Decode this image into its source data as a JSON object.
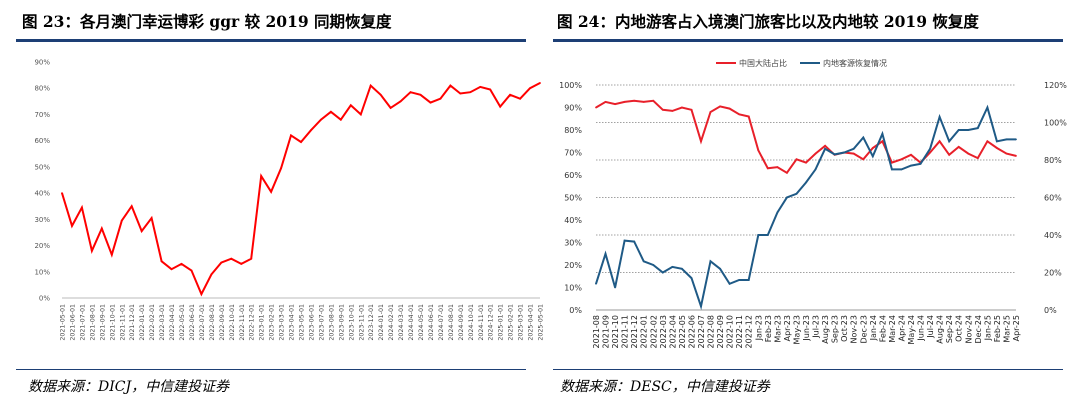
{
  "panel1": {
    "title": "图 23：各月澳门幸运博彩 ggr 较 2019 同期恢复度",
    "source": "数据来源：DICJ，中信建投证券"
  },
  "panel2": {
    "title": "图 24：内地游客占入境澳门旅客比以及内地较 2019 恢复度",
    "source": "数据来源：DESC，中信建投证券"
  },
  "chart_data": [
    {
      "type": "line",
      "title": "各月澳门幸运博彩 ggr 较 2019 同期恢复度",
      "ylim": [
        0,
        90
      ],
      "yticks": [
        "0%",
        "10%",
        "20%",
        "30%",
        "40%",
        "50%",
        "60%",
        "70%",
        "80%",
        "90%"
      ],
      "grid": false,
      "color": "#ff0000",
      "x": [
        "2021-05-01",
        "2021-06-01",
        "2021-07-01",
        "2021-08-01",
        "2021-09-01",
        "2021-10-01",
        "2021-11-01",
        "2021-12-01",
        "2022-01-01",
        "2022-02-01",
        "2022-03-01",
        "2022-04-01",
        "2022-05-01",
        "2022-06-01",
        "2022-07-01",
        "2022-08-01",
        "2022-09-01",
        "2022-10-01",
        "2022-11-01",
        "2022-12-01",
        "2023-01-01",
        "2023-02-01",
        "2023-03-01",
        "2023-04-01",
        "2023-05-01",
        "2023-06-01",
        "2023-07-01",
        "2023-08-01",
        "2023-09-01",
        "2023-10-01",
        "2023-11-01",
        "2023-12-01",
        "2024-01-01",
        "2024-02-01",
        "2024-03-01",
        "2024-04-01",
        "2024-05-01",
        "2024-06-01",
        "2024-07-01",
        "2024-08-01",
        "2024-09-01",
        "2024-10-01",
        "2024-11-01",
        "2024-12-01",
        "2025-01-01",
        "2025-02-01",
        "2025-03-01",
        "2025-04-01",
        "2025-05-01"
      ],
      "values": [
        40,
        27.5,
        34.5,
        18,
        26.5,
        16.5,
        29.5,
        35,
        25.5,
        30.5,
        14,
        11,
        13,
        10.5,
        1.5,
        9,
        13.5,
        15,
        13,
        15,
        46.5,
        40.5,
        49.5,
        62,
        59.5,
        64,
        68,
        71,
        68,
        73.5,
        70,
        81,
        77.5,
        72.5,
        75,
        78.5,
        77.5,
        74.5,
        76,
        81,
        78,
        78.5,
        80.5,
        79.5,
        73,
        77.5,
        76,
        80,
        82
      ]
    },
    {
      "type": "line",
      "title": "内地游客占入境澳门旅客比以及内地较 2019 恢复度",
      "ylim_left": [
        0,
        100
      ],
      "ylim_right": [
        0,
        120
      ],
      "yticks_left": [
        "0%",
        "10%",
        "20%",
        "30%",
        "40%",
        "50%",
        "60%",
        "70%",
        "80%",
        "90%",
        "100%"
      ],
      "yticks_right": [
        "0%",
        "20%",
        "40%",
        "60%",
        "80%",
        "100%",
        "120%"
      ],
      "grid": "horizontal dashed at every 20% of right axis",
      "legend": "top",
      "x_labels": [
        "2021-08",
        "2021-09",
        "2021-10",
        "2021-11",
        "2021-12",
        "2022-01",
        "2022-02",
        "2022-03",
        "2022-04",
        "2022-05",
        "2022-06",
        "2022-07",
        "2022-08",
        "2022-09",
        "2022-10",
        "2022-11",
        "2022-12",
        "Jan-23",
        "Feb-23",
        "Mar-23",
        "Apr-23",
        "May-23",
        "Jun-23",
        "Jul-23",
        "Aug-23",
        "Sep-23",
        "Oct-23",
        "Nov-23",
        "Dec-23",
        "Jan-24",
        "Feb-24",
        "Mar-24",
        "Apr-24",
        "May-24",
        "Jun-24",
        "Jul-24",
        "Aug-24",
        "Sep-24",
        "Oct-24",
        "Nov-24",
        "Dec-24",
        "Jan-25",
        "Feb-25",
        "Mar-25",
        "Apr-25"
      ],
      "series": [
        {
          "name": "中国大陆占比",
          "axis": "left",
          "color": "#e8202a",
          "values": [
            90,
            92.5,
            91.5,
            92.5,
            93,
            92.5,
            93,
            89,
            88.5,
            90,
            89,
            75,
            88,
            90.5,
            89.5,
            87,
            86,
            71,
            63,
            63.5,
            61,
            67,
            65.5,
            69.5,
            73,
            69,
            70,
            69.5,
            67,
            72,
            75,
            65.5,
            67,
            69,
            65.5,
            70,
            75,
            69,
            72.5,
            69.5,
            67.5,
            75,
            72,
            69.5,
            68.5
          ]
        },
        {
          "name": "内地客源恢复情况",
          "axis": "right",
          "color": "#1f5a86",
          "values": [
            14,
            30,
            12,
            37,
            36.5,
            26,
            24,
            20,
            23,
            22,
            17,
            2,
            26,
            22,
            14,
            16,
            16,
            40,
            40,
            52,
            60,
            62,
            68,
            75,
            86,
            83,
            84,
            86,
            92,
            82,
            94,
            75,
            75,
            77,
            78,
            86,
            103,
            90,
            96,
            96,
            97,
            108,
            90,
            91,
            91
          ]
        }
      ]
    }
  ]
}
